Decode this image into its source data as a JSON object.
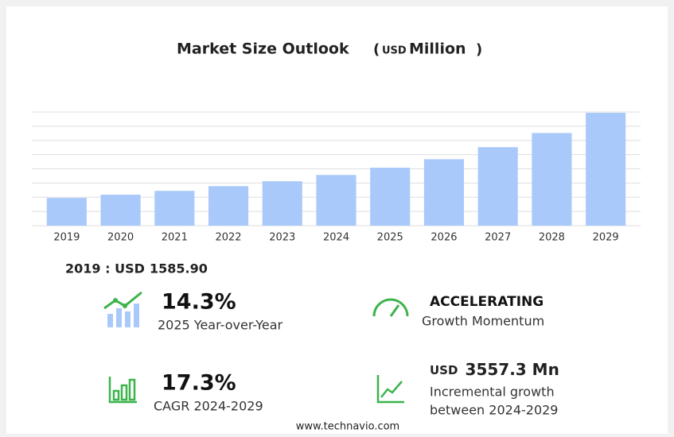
{
  "chart_data": {
    "type": "bar",
    "title": "Market Size Outlook",
    "unit_open": "(",
    "unit_currency": "USD",
    "unit_name": "Million",
    "unit_close": ")",
    "categories": [
      "2019",
      "2020",
      "2021",
      "2022",
      "2023",
      "2024",
      "2025",
      "2026",
      "2027",
      "2028",
      "2029"
    ],
    "values": [
      1585.9,
      1770,
      1990,
      2260,
      2540,
      2900,
      3315,
      3800,
      4490,
      5300,
      6457
    ],
    "color": "#a9c9fa",
    "ylim": [
      0,
      6500
    ],
    "grid": true
  },
  "base": {
    "label": "2019 : USD",
    "value": "1585.90"
  },
  "stats": [
    {
      "value": "14.3%",
      "label": "2025 Year-over-Year"
    },
    {
      "value": "ACCELERATING",
      "label": "Growth Momentum"
    },
    {
      "value": "17.3%",
      "label": "CAGR 2024-2029"
    },
    {
      "currency": "USD",
      "value": "3557.3 Mn",
      "label_1": "Incremental growth",
      "label_2": "between 2024-2029"
    }
  ],
  "footer": "www.technavio.com"
}
